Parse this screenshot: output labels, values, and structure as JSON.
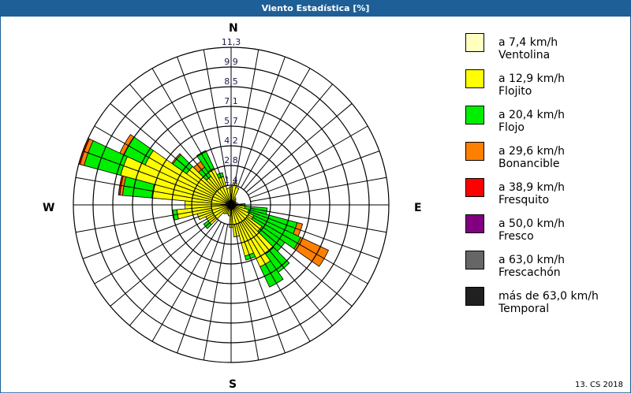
{
  "window": {
    "title": "Viento Estadística [%]"
  },
  "footer": "13. CS 2018",
  "compass": {
    "N": "N",
    "E": "E",
    "S": "S",
    "W": "W"
  },
  "chart_data": {
    "type": "wind-rose",
    "title": "Viento Estadística [%]",
    "unit": "%",
    "radial_ticks": [
      "1,4",
      "2,8",
      "4,2",
      "5,7",
      "7,1",
      "8,5",
      "9,9",
      "11,3"
    ],
    "radial_max": 11.3,
    "grid": true,
    "sector_width_deg": 10,
    "legend_position": "right",
    "categories": [
      "a 7,4 km/h",
      "a 12,9 km/h",
      "a 20,4 km/h",
      "a 29,6 km/h",
      "a 38,9 km/h",
      "a 50,0 km/h",
      "a 63,0 km/h",
      "más de 63,0 km/h"
    ],
    "series": [
      {
        "name": "Ventolina",
        "range": "a 7,4 km/h",
        "color": "#ffffc0"
      },
      {
        "name": "Flojito",
        "range": "a 12,9 km/h",
        "color": "#ffff00"
      },
      {
        "name": "Flojo",
        "range": "a 20,4 km/h",
        "color": "#00ee00"
      },
      {
        "name": "Bonancible",
        "range": "a 29,6 km/h",
        "color": "#ff8000"
      },
      {
        "name": "Fresquito",
        "range": "a 38,9 km/h",
        "color": "#ff0000"
      },
      {
        "name": "Fresco",
        "range": "a 50,0 km/h",
        "color": "#800080"
      },
      {
        "name": "Frescachón",
        "range": "a 63,0 km/h",
        "color": "#666666"
      },
      {
        "name": "Temporal",
        "range": "más de 63,0 km/h",
        "color": "#202020"
      }
    ],
    "directions": [
      {
        "dir": 0,
        "values": [
          0.3,
          1.0,
          0.0,
          0,
          0,
          0,
          0,
          0
        ]
      },
      {
        "dir": 10,
        "values": [
          0.3,
          1.3,
          0.0,
          0,
          0,
          0,
          0,
          0
        ]
      },
      {
        "dir": 20,
        "values": [
          0.3,
          1.0,
          0.0,
          0,
          0,
          0,
          0,
          0
        ]
      },
      {
        "dir": 30,
        "values": [
          0.2,
          0.4,
          0.0,
          0,
          0,
          0,
          0,
          0
        ]
      },
      {
        "dir": 40,
        "values": [
          0.2,
          0.3,
          0.0,
          0,
          0,
          0,
          0,
          0
        ]
      },
      {
        "dir": 50,
        "values": [
          0.2,
          0.2,
          0.0,
          0,
          0,
          0,
          0,
          0
        ]
      },
      {
        "dir": 60,
        "values": [
          0.2,
          0.2,
          0.0,
          0,
          0,
          0,
          0,
          0
        ]
      },
      {
        "dir": 70,
        "values": [
          0.2,
          0.2,
          0.0,
          0,
          0,
          0,
          0,
          0
        ]
      },
      {
        "dir": 80,
        "values": [
          0.2,
          0.3,
          0.0,
          0,
          0,
          0,
          0,
          0
        ]
      },
      {
        "dir": 90,
        "values": [
          0.2,
          0.5,
          0.3,
          0,
          0,
          0,
          0,
          0
        ]
      },
      {
        "dir": 100,
        "values": [
          0.2,
          0.8,
          1.6,
          0,
          0,
          0,
          0,
          0
        ]
      },
      {
        "dir": 110,
        "values": [
          0.3,
          1.0,
          3.6,
          0.4,
          0,
          0,
          0,
          0
        ]
      },
      {
        "dir": 120,
        "values": [
          0.3,
          1.5,
          3.7,
          2.2,
          0,
          0,
          0,
          0
        ]
      },
      {
        "dir": 130,
        "values": [
          0.3,
          2.4,
          2.0,
          0,
          0,
          0,
          0,
          0
        ]
      },
      {
        "dir": 140,
        "values": [
          0.3,
          4.0,
          1.6,
          0,
          0,
          0,
          0,
          0
        ]
      },
      {
        "dir": 150,
        "values": [
          0.3,
          4.6,
          1.6,
          0,
          0,
          0,
          0,
          0
        ]
      },
      {
        "dir": 160,
        "values": [
          0.3,
          3.5,
          0.3,
          0,
          0,
          0,
          0,
          0
        ]
      },
      {
        "dir": 170,
        "values": [
          0.3,
          2.0,
          0.0,
          0,
          0,
          0,
          0,
          0
        ]
      },
      {
        "dir": 180,
        "values": [
          0.3,
          1.3,
          0.0,
          0,
          0,
          0,
          0,
          0
        ]
      },
      {
        "dir": 190,
        "values": [
          0.2,
          0.6,
          0.0,
          0,
          0,
          0,
          0,
          0
        ]
      },
      {
        "dir": 200,
        "values": [
          0.2,
          0.5,
          0.0,
          0,
          0,
          0,
          0,
          0
        ]
      },
      {
        "dir": 210,
        "values": [
          0.2,
          0.5,
          0.0,
          0,
          0,
          0,
          0,
          0
        ]
      },
      {
        "dir": 220,
        "values": [
          0.2,
          0.6,
          0.0,
          0,
          0,
          0,
          0,
          0
        ]
      },
      {
        "dir": 230,
        "values": [
          0.2,
          1.8,
          0.4,
          0,
          0,
          0,
          0,
          0
        ]
      },
      {
        "dir": 240,
        "values": [
          0.2,
          1.8,
          0.0,
          0,
          0,
          0,
          0,
          0
        ]
      },
      {
        "dir": 250,
        "values": [
          0.2,
          2.3,
          0.0,
          0,
          0,
          0,
          0,
          0
        ]
      },
      {
        "dir": 260,
        "values": [
          0.3,
          3.6,
          0.3,
          0,
          0,
          0,
          0,
          0
        ]
      },
      {
        "dir": 270,
        "values": [
          0.3,
          3.0,
          0.0,
          0,
          0,
          0,
          0,
          0
        ]
      },
      {
        "dir": 280,
        "values": [
          0.4,
          5.3,
          2.1,
          0.2,
          0.1,
          0,
          0,
          0
        ]
      },
      {
        "dir": 290,
        "values": [
          0.4,
          7.8,
          2.7,
          0.3,
          0.1,
          0,
          0,
          0
        ]
      },
      {
        "dir": 300,
        "values": [
          0.4,
          6.4,
          1.7,
          0.3,
          0,
          0,
          0,
          0
        ]
      },
      {
        "dir": 310,
        "values": [
          0.3,
          3.6,
          1.2,
          0.1,
          0,
          0,
          0,
          0
        ]
      },
      {
        "dir": 320,
        "values": [
          0.3,
          2.2,
          0.8,
          0.5,
          0,
          0,
          0,
          0
        ]
      },
      {
        "dir": 330,
        "values": [
          0.3,
          2.6,
          1.4,
          0.0,
          0,
          0,
          0,
          0
        ]
      },
      {
        "dir": 340,
        "values": [
          0.3,
          1.8,
          0.3,
          0,
          0,
          0,
          0,
          0
        ]
      },
      {
        "dir": 350,
        "values": [
          0.3,
          0.9,
          0.0,
          0,
          0,
          0,
          0,
          0
        ]
      }
    ]
  }
}
